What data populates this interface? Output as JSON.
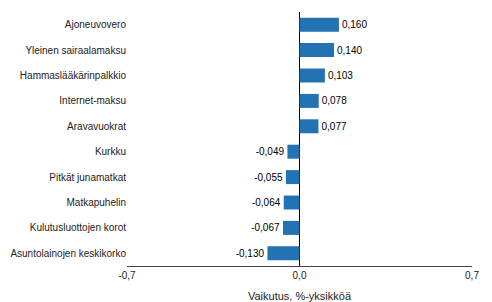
{
  "chart_data": {
    "type": "bar",
    "orientation": "horizontal",
    "categories": [
      "Asuntolainojen keskikorko",
      "Kulutusluottojen korot",
      "Matkapuhelin",
      "Pitkät junamatkat",
      "Kurkku",
      "Aravavuokrat",
      "Internet-maksu",
      "Hammaslääkärinpalkkio",
      "Yleinen sairaalamaksu",
      "Ajoneuvovero"
    ],
    "values": [
      -0.13,
      -0.067,
      -0.064,
      -0.055,
      -0.049,
      0.077,
      0.078,
      0.103,
      0.14,
      0.16
    ],
    "value_labels": [
      "-0,130",
      "-0,067",
      "-0,064",
      "-0,055",
      "-0,049",
      "0,077",
      "0,078",
      "0,103",
      "0,140",
      "0,160"
    ],
    "data_labels": true,
    "color": "#2272b4",
    "xlabel": "Vaikutus, %-yksikköä",
    "xlim": [
      -0.7,
      0.7
    ],
    "xticks": [
      {
        "value": -0.7,
        "label": "-0,7"
      },
      {
        "value": 0.0,
        "label": "0,0"
      },
      {
        "value": 0.7,
        "label": "0,7"
      }
    ],
    "grid": true
  }
}
